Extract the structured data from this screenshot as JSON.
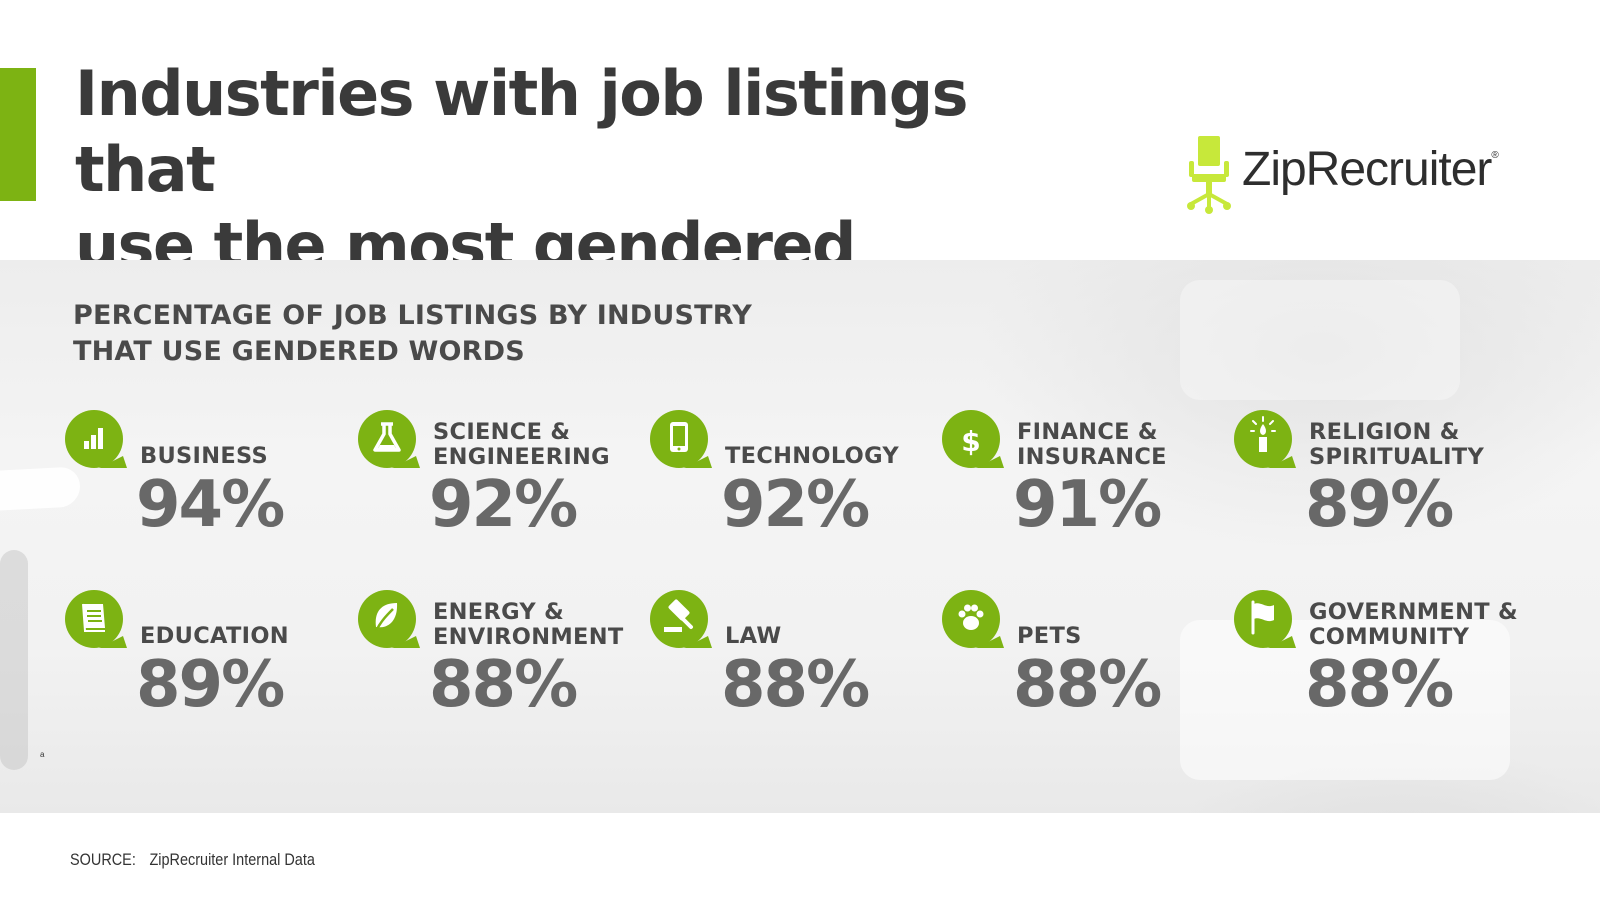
{
  "title_line1": "Industries with job listings that",
  "title_line2": "use the most gendered wording",
  "logo": {
    "text": "ZipRecruiter",
    "trademark": "®",
    "icon": "office-chair-icon",
    "color": "#c7e83a"
  },
  "accent_color": "#7db313",
  "subtitle_line1": "PERCENTAGE OF JOB LISTINGS BY INDUSTRY",
  "subtitle_line2": "THAT USE GENDERED WORDS",
  "tiny_mark": "a",
  "source": {
    "label": "SOURCE:",
    "text": "ZipRecruiter Internal Data"
  },
  "chart_data": {
    "type": "table",
    "title": "PERCENTAGE OF JOB LISTINGS BY INDUSTRY THAT USE GENDERED WORDS",
    "unit": "%",
    "categories": [
      "BUSINESS",
      "SCIENCE & ENGINEERING",
      "TECHNOLOGY",
      "FINANCE & INSURANCE",
      "RELIGION & SPIRITUALITY",
      "EDUCATION",
      "ENERGY & ENVIRONMENT",
      "LAW",
      "PETS",
      "GOVERNMENT & COMMUNITY"
    ],
    "values": [
      94,
      92,
      92,
      91,
      89,
      89,
      88,
      88,
      88,
      88
    ],
    "items": [
      {
        "label": "BUSINESS",
        "value": 94,
        "value_label": "94%",
        "icon": "bar-chart-icon"
      },
      {
        "label": "SCIENCE &\nENGINEERING",
        "value": 92,
        "value_label": "92%",
        "icon": "flask-icon"
      },
      {
        "label": "TECHNOLOGY",
        "value": 92,
        "value_label": "92%",
        "icon": "smartphone-icon"
      },
      {
        "label": "FINANCE &\nINSURANCE",
        "value": 91,
        "value_label": "91%",
        "icon": "dollar-icon"
      },
      {
        "label": "RELIGION &\nSPIRITUALITY",
        "value": 89,
        "value_label": "89%",
        "icon": "candle-icon"
      },
      {
        "label": "EDUCATION",
        "value": 89,
        "value_label": "89%",
        "icon": "book-icon"
      },
      {
        "label": "ENERGY &\nENVIRONMENT",
        "value": 88,
        "value_label": "88%",
        "icon": "leaf-icon"
      },
      {
        "label": "LAW",
        "value": 88,
        "value_label": "88%",
        "icon": "gavel-icon"
      },
      {
        "label": "PETS",
        "value": 88,
        "value_label": "88%",
        "icon": "paw-icon"
      },
      {
        "label": "GOVERNMENT &\nCOMMUNITY",
        "value": 88,
        "value_label": "88%",
        "icon": "flag-icon"
      }
    ],
    "icon_color": "#7db313"
  }
}
